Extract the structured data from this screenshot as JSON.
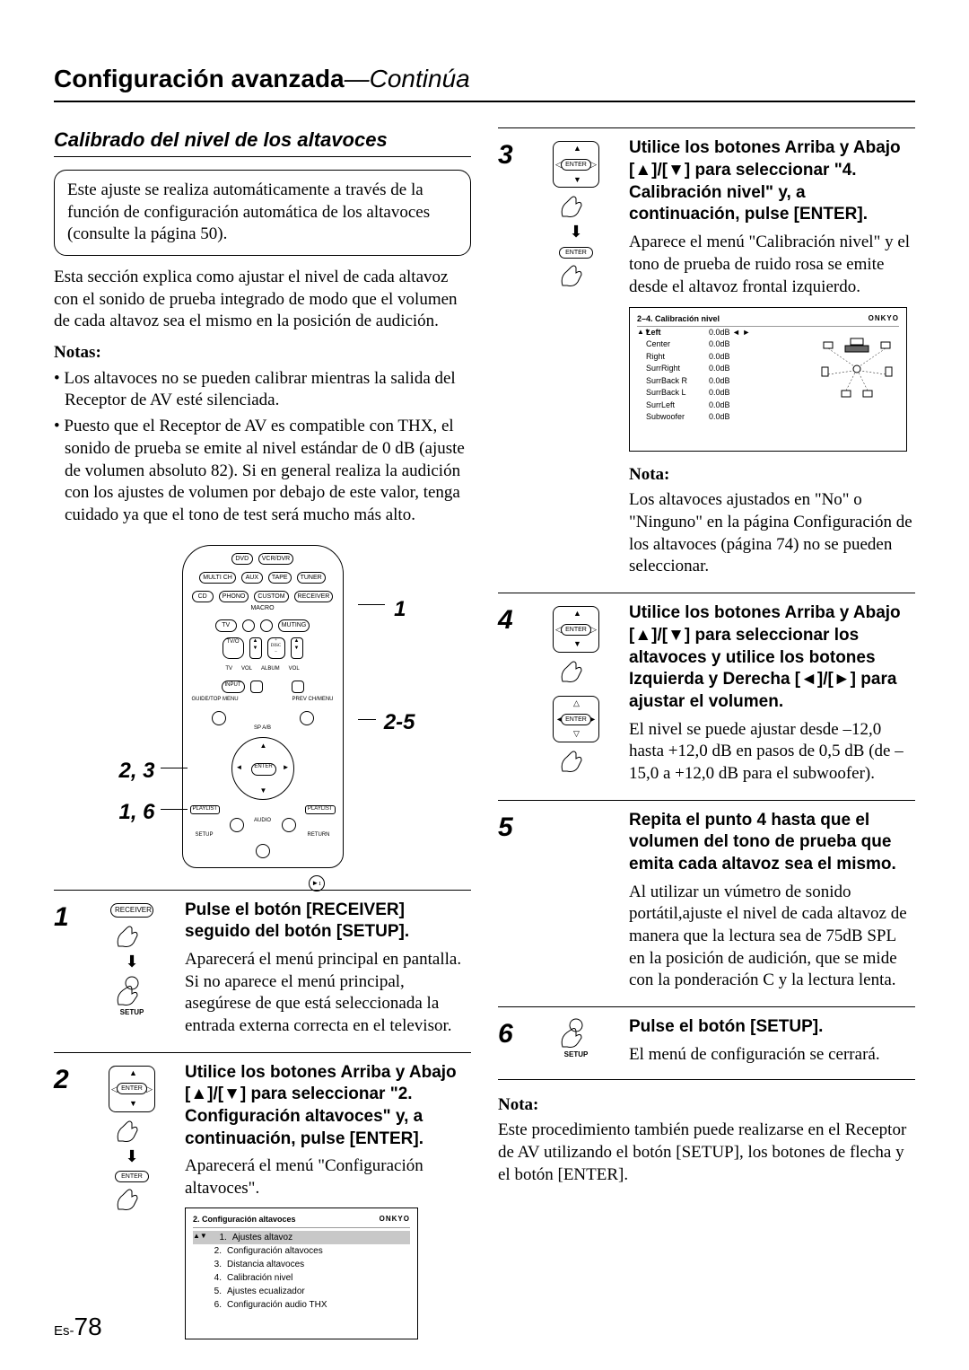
{
  "header": {
    "title": "Configuración avanzada",
    "subtitle": "—Continúa"
  },
  "section_title": "Calibrado del nivel de los altavoces",
  "callout": "Este ajuste se realiza automáticamente a través de la función de configuración automática de los altavoces (consulte la página 50).",
  "intro": "Esta sección explica como ajustar el nivel de cada altavoz con el sonido de prueba integrado de modo que el volumen de cada altavoz sea el mismo en la posición de audición.",
  "notas_label": "Notas:",
  "notas": [
    "Los altavoces no se pueden calibrar mientras la salida del Receptor de AV esté silenciada.",
    "Puesto que el Receptor de AV es compatible con THX, el sonido de prueba se emite al nivel estándar de 0 dB (ajuste de volumen absoluto 82). Si en general realiza la audición con los ajustes de volumen por debajo de este valor, tenga cuidado ya que el tono de test será mucho más alto."
  ],
  "remote_buttons": {
    "row1": [
      "DVD",
      "VCR/DVR"
    ],
    "row2": [
      "MULTI CH",
      "AUX",
      "TAPE",
      "TUNER"
    ],
    "row3": [
      "CD",
      "PHONO",
      "CUSTOM",
      "RECEIVER"
    ],
    "row4": [
      "TV",
      "①",
      "②",
      "MUTING"
    ],
    "callouts": {
      "r1": "1",
      "r2_5": "2-5",
      "l23": "2, 3",
      "l16": "1, 6"
    }
  },
  "steps": {
    "s1": {
      "num": "1",
      "heading": "Pulse el botón [RECEIVER] seguido del botón [SETUP].",
      "body": "Aparecerá el menú principal en pantalla.\nSi no aparece el menú principal, asegúrese de que está seleccionada la entrada externa correcta en el televisor.",
      "icon_labels": {
        "receiver": "RECEIVER",
        "setup": "SETUP"
      }
    },
    "s2": {
      "num": "2",
      "heading": "Utilice los botones Arriba y Abajo [▲]/[▼] para seleccionar \"2. Configuración altavoces\" y, a continuación, pulse [ENTER].",
      "body": "Aparecerá el menú \"Configuración altavoces\".",
      "menu": {
        "title": "2.   Configuración altavoces",
        "brand": "ONKYO",
        "items": [
          "Ajustes altavoz",
          "Configuración altavoces",
          "Distancia altavoces",
          "Calibración nivel",
          "Ajustes ecualizador",
          "Configuración audio THX"
        ]
      }
    },
    "s3": {
      "num": "3",
      "heading": "Utilice los botones Arriba y Abajo [▲]/[▼] para seleccionar \"4. Calibración nivel\" y, a continuación, pulse [ENTER].",
      "body": "Aparece el menú \"Calibración nivel\" y el tono de prueba de ruido rosa se emite desde el altavoz frontal izquierdo.",
      "level_menu": {
        "title": "2–4.   Calibración nivel",
        "brand": "ONKYO",
        "rows": [
          {
            "label": "Left",
            "value": "0.0dB",
            "sel": true
          },
          {
            "label": "Center",
            "value": "0.0dB"
          },
          {
            "label": "Right",
            "value": "0.0dB"
          },
          {
            "label": "SurrRight",
            "value": "0.0dB"
          },
          {
            "label": "SurrBack R",
            "value": "0.0dB"
          },
          {
            "label": "SurrBack L",
            "value": "0.0dB"
          },
          {
            "label": "SurrLeft",
            "value": "0.0dB"
          },
          {
            "label": "Subwoofer",
            "value": "0.0dB"
          }
        ]
      },
      "nota_label": "Nota:",
      "nota": "Los altavoces ajustados en \"No\" o \"Ninguno\" en la página Configuración de los altavoces (página 74) no se pueden seleccionar."
    },
    "s4": {
      "num": "4",
      "heading": "Utilice los botones Arriba y Abajo [▲]/[▼] para seleccionar los altavoces y utilice los botones Izquierda y Derecha [◄]/[►] para ajustar el volumen.",
      "body": "El nivel se puede ajustar desde –12,0 hasta +12,0 dB en pasos de 0,5 dB (de –15,0 a +12,0 dB para el subwoofer)."
    },
    "s5": {
      "num": "5",
      "heading": "Repita el punto 4 hasta que el volumen del tono de prueba que emita cada altavoz sea el mismo.",
      "body": "Al utilizar un vúmetro de sonido portátil,ajuste el nivel de cada altavoz de manera que la lectura sea de 75dB SPL en la posición de audición, que se mide con la ponderación C y la lectura lenta."
    },
    "s6": {
      "num": "6",
      "heading": "Pulse el botón [SETUP].",
      "body": "El menú de configuración se cerrará.",
      "setup_label": "SETUP"
    }
  },
  "footer_nota_label": "Nota:",
  "footer_nota": "Este procedimiento también puede realizarse en el Receptor de AV utilizando el botón [SETUP], los botones de flecha y el botón [ENTER].",
  "page": {
    "prefix": "Es-",
    "num": "78"
  },
  "icons": {
    "enter": "ENTER"
  }
}
